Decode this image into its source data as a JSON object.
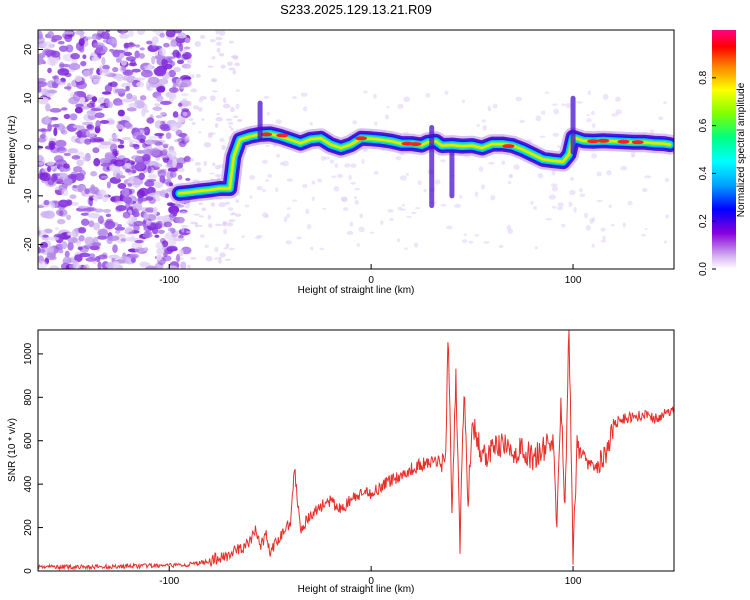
{
  "title": "S233.2025.129.13.21.R09",
  "chart_data": [
    {
      "type": "heatmap",
      "title": "",
      "xlabel": "Height of straight line (km)",
      "ylabel": "Frequency (Hz)",
      "xlim": [
        -165,
        150
      ],
      "ylim": [
        -25,
        24
      ],
      "xticks": [
        -100,
        0,
        100
      ],
      "yticks": [
        -20,
        -10,
        0,
        10,
        20
      ],
      "grid": false,
      "colorbar": {
        "label": "Normalized spectral amplitude",
        "range": [
          0,
          1
        ],
        "ticks": [
          "0.0",
          "0.2",
          "0.4",
          "0.6",
          "0.8"
        ]
      },
      "ridge": {
        "x": [
          -95,
          -90,
          -85,
          -80,
          -75,
          -70,
          -68,
          -65,
          -60,
          -55,
          -50,
          -45,
          -40,
          -35,
          -30,
          -25,
          -20,
          -15,
          -10,
          -5,
          0,
          5,
          10,
          15,
          20,
          25,
          28,
          32,
          35,
          40,
          45,
          50,
          55,
          60,
          65,
          70,
          75,
          80,
          85,
          90,
          95,
          98,
          100,
          105,
          110,
          115,
          120,
          125,
          130,
          135,
          140,
          145,
          148
        ],
        "y": [
          -9.5,
          -9.3,
          -9.0,
          -8.8,
          -8.5,
          -8.5,
          -2,
          1.5,
          2.2,
          2.6,
          2.7,
          2.2,
          1.5,
          0.8,
          1.6,
          1.8,
          0.5,
          -0.2,
          0.5,
          1.8,
          1.7,
          1.5,
          1.2,
          0.7,
          0.7,
          0.4,
          1,
          1.2,
          0.3,
          0.4,
          0.2,
          0.3,
          -0.2,
          0.6,
          0.6,
          0.3,
          -0.5,
          -1.5,
          -2.5,
          -2.8,
          -3,
          -1.5,
          2,
          1.3,
          1.2,
          1.3,
          1.2,
          1.1,
          1.0,
          1.0,
          0.8,
          0.7,
          0.5
        ]
      }
    },
    {
      "type": "line",
      "title": "",
      "xlabel": "Height of straight line (km)",
      "ylabel": "SNR (10 * v/v)",
      "xlim": [
        -165,
        150
      ],
      "ylim": [
        0,
        1110
      ],
      "xticks": [
        -100,
        0,
        100
      ],
      "yticks": [
        0,
        200,
        400,
        600,
        800,
        1000
      ],
      "color": "#e8302a",
      "grid": false,
      "series": [
        {
          "x": [
            -165,
            -140,
            -120,
            -100,
            -90,
            -80,
            -75,
            -70,
            -65,
            -60,
            -57,
            -55,
            -52,
            -50,
            -45,
            -40,
            -38,
            -35,
            -30,
            -25,
            -20,
            -15,
            -10,
            -5,
            0,
            5,
            10,
            15,
            20,
            25,
            30,
            35,
            37,
            38,
            40,
            42,
            44,
            46,
            48,
            50,
            55,
            60,
            65,
            70,
            75,
            80,
            85,
            90,
            92,
            94,
            96,
            98,
            100,
            102,
            104,
            106,
            110,
            115,
            118,
            120,
            125,
            130,
            135,
            140,
            145,
            150
          ],
          "y": [
            20,
            18,
            22,
            25,
            30,
            45,
            60,
            80,
            100,
            130,
            200,
            110,
            170,
            80,
            160,
            230,
            470,
            200,
            250,
            300,
            320,
            280,
            330,
            350,
            360,
            390,
            420,
            440,
            470,
            490,
            500,
            510,
            520,
            1110,
            300,
            900,
            100,
            850,
            300,
            700,
            520,
            560,
            580,
            540,
            560,
            520,
            560,
            600,
            200,
            800,
            300,
            1110,
            50,
            600,
            520,
            540,
            500,
            520,
            560,
            680,
            700,
            710,
            720,
            700,
            720,
            740
          ]
        }
      ]
    }
  ]
}
